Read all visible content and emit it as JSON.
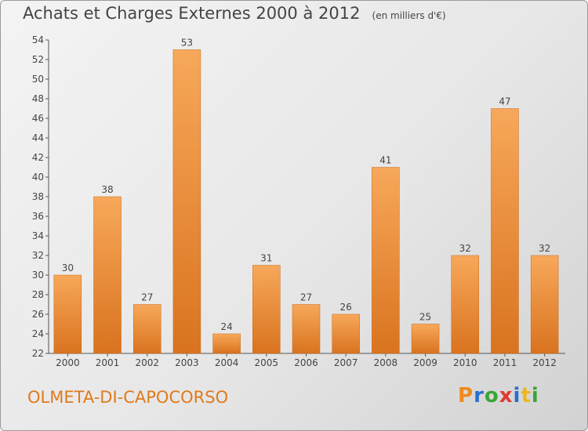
{
  "header": {
    "title": "Achats et Charges Externes 2000 à 2012",
    "subtitle": "(en milliers d'€)"
  },
  "location": "OLMETA-DI-CAPOCORSO",
  "logo": {
    "text": "Proxiti",
    "colors": [
      "#f08a1c",
      "#2a6fc9",
      "#3aa535",
      "#e03a2f",
      "#2a6fc9",
      "#f0b51c",
      "#3aa535"
    ]
  },
  "colors": {
    "bar_light": "#f7a85a",
    "bar_dark": "#d9731f",
    "accent": "#e07a1b"
  },
  "chart_data": {
    "type": "bar",
    "title": "Achats et Charges Externes 2000 à 2012",
    "subtitle": "(en milliers d'€)",
    "categories": [
      "2000",
      "2001",
      "2002",
      "2003",
      "2004",
      "2005",
      "2006",
      "2007",
      "2008",
      "2009",
      "2010",
      "2011",
      "2012"
    ],
    "values": [
      30,
      38,
      27,
      53,
      24,
      31,
      27,
      26,
      41,
      25,
      32,
      47,
      32
    ],
    "ylim": [
      22,
      54
    ],
    "yticks": [
      22,
      24,
      26,
      28,
      30,
      32,
      34,
      36,
      38,
      40,
      42,
      44,
      46,
      48,
      50,
      52,
      54
    ],
    "grid": false,
    "xlabel": "",
    "ylabel": ""
  }
}
